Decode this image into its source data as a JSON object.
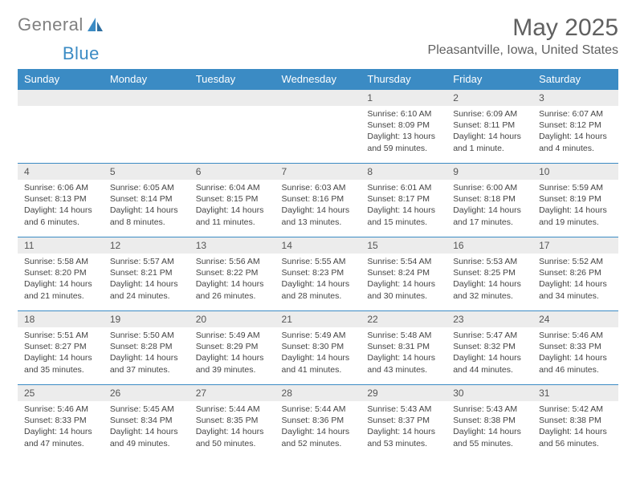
{
  "brand": {
    "part1": "General",
    "part2": "Blue"
  },
  "title": "May 2025",
  "location": "Pleasantville, Iowa, United States",
  "colors": {
    "header_bg": "#3b8bc4",
    "header_text": "#ffffff",
    "day_number_bg": "#ececec",
    "border": "#3b8bc4",
    "title_color": "#606060",
    "text_color": "#444444"
  },
  "typography": {
    "title_fontsize": 30,
    "location_fontsize": 16,
    "header_fontsize": 13,
    "daynum_fontsize": 12,
    "detail_fontsize": 10.5
  },
  "weekdays": [
    "Sunday",
    "Monday",
    "Tuesday",
    "Wednesday",
    "Thursday",
    "Friday",
    "Saturday"
  ],
  "weeks": [
    [
      null,
      null,
      null,
      null,
      {
        "n": "1",
        "sunrise": "6:10 AM",
        "sunset": "8:09 PM",
        "daylight": "13 hours and 59 minutes."
      },
      {
        "n": "2",
        "sunrise": "6:09 AM",
        "sunset": "8:11 PM",
        "daylight": "14 hours and 1 minute."
      },
      {
        "n": "3",
        "sunrise": "6:07 AM",
        "sunset": "8:12 PM",
        "daylight": "14 hours and 4 minutes."
      }
    ],
    [
      {
        "n": "4",
        "sunrise": "6:06 AM",
        "sunset": "8:13 PM",
        "daylight": "14 hours and 6 minutes."
      },
      {
        "n": "5",
        "sunrise": "6:05 AM",
        "sunset": "8:14 PM",
        "daylight": "14 hours and 8 minutes."
      },
      {
        "n": "6",
        "sunrise": "6:04 AM",
        "sunset": "8:15 PM",
        "daylight": "14 hours and 11 minutes."
      },
      {
        "n": "7",
        "sunrise": "6:03 AM",
        "sunset": "8:16 PM",
        "daylight": "14 hours and 13 minutes."
      },
      {
        "n": "8",
        "sunrise": "6:01 AM",
        "sunset": "8:17 PM",
        "daylight": "14 hours and 15 minutes."
      },
      {
        "n": "9",
        "sunrise": "6:00 AM",
        "sunset": "8:18 PM",
        "daylight": "14 hours and 17 minutes."
      },
      {
        "n": "10",
        "sunrise": "5:59 AM",
        "sunset": "8:19 PM",
        "daylight": "14 hours and 19 minutes."
      }
    ],
    [
      {
        "n": "11",
        "sunrise": "5:58 AM",
        "sunset": "8:20 PM",
        "daylight": "14 hours and 21 minutes."
      },
      {
        "n": "12",
        "sunrise": "5:57 AM",
        "sunset": "8:21 PM",
        "daylight": "14 hours and 24 minutes."
      },
      {
        "n": "13",
        "sunrise": "5:56 AM",
        "sunset": "8:22 PM",
        "daylight": "14 hours and 26 minutes."
      },
      {
        "n": "14",
        "sunrise": "5:55 AM",
        "sunset": "8:23 PM",
        "daylight": "14 hours and 28 minutes."
      },
      {
        "n": "15",
        "sunrise": "5:54 AM",
        "sunset": "8:24 PM",
        "daylight": "14 hours and 30 minutes."
      },
      {
        "n": "16",
        "sunrise": "5:53 AM",
        "sunset": "8:25 PM",
        "daylight": "14 hours and 32 minutes."
      },
      {
        "n": "17",
        "sunrise": "5:52 AM",
        "sunset": "8:26 PM",
        "daylight": "14 hours and 34 minutes."
      }
    ],
    [
      {
        "n": "18",
        "sunrise": "5:51 AM",
        "sunset": "8:27 PM",
        "daylight": "14 hours and 35 minutes."
      },
      {
        "n": "19",
        "sunrise": "5:50 AM",
        "sunset": "8:28 PM",
        "daylight": "14 hours and 37 minutes."
      },
      {
        "n": "20",
        "sunrise": "5:49 AM",
        "sunset": "8:29 PM",
        "daylight": "14 hours and 39 minutes."
      },
      {
        "n": "21",
        "sunrise": "5:49 AM",
        "sunset": "8:30 PM",
        "daylight": "14 hours and 41 minutes."
      },
      {
        "n": "22",
        "sunrise": "5:48 AM",
        "sunset": "8:31 PM",
        "daylight": "14 hours and 43 minutes."
      },
      {
        "n": "23",
        "sunrise": "5:47 AM",
        "sunset": "8:32 PM",
        "daylight": "14 hours and 44 minutes."
      },
      {
        "n": "24",
        "sunrise": "5:46 AM",
        "sunset": "8:33 PM",
        "daylight": "14 hours and 46 minutes."
      }
    ],
    [
      {
        "n": "25",
        "sunrise": "5:46 AM",
        "sunset": "8:33 PM",
        "daylight": "14 hours and 47 minutes."
      },
      {
        "n": "26",
        "sunrise": "5:45 AM",
        "sunset": "8:34 PM",
        "daylight": "14 hours and 49 minutes."
      },
      {
        "n": "27",
        "sunrise": "5:44 AM",
        "sunset": "8:35 PM",
        "daylight": "14 hours and 50 minutes."
      },
      {
        "n": "28",
        "sunrise": "5:44 AM",
        "sunset": "8:36 PM",
        "daylight": "14 hours and 52 minutes."
      },
      {
        "n": "29",
        "sunrise": "5:43 AM",
        "sunset": "8:37 PM",
        "daylight": "14 hours and 53 minutes."
      },
      {
        "n": "30",
        "sunrise": "5:43 AM",
        "sunset": "8:38 PM",
        "daylight": "14 hours and 55 minutes."
      },
      {
        "n": "31",
        "sunrise": "5:42 AM",
        "sunset": "8:38 PM",
        "daylight": "14 hours and 56 minutes."
      }
    ]
  ],
  "labels": {
    "sunrise": "Sunrise:",
    "sunset": "Sunset:",
    "daylight": "Daylight:"
  }
}
